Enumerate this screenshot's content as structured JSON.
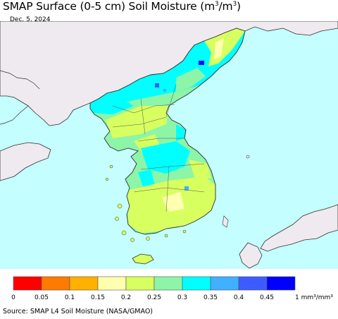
{
  "title": {
    "prefix": "SMAP Surface (0-5 cm) Soil Moisture (m",
    "sup1": "3",
    "mid": "/m",
    "sup2": "3",
    "suffix": ")"
  },
  "date": "Dec. 5, 2024",
  "colors": {
    "sea": "#c4fefe",
    "land_outside": "#efeaef",
    "coast": "#2f2f2f"
  },
  "legend": {
    "bins": [
      {
        "color": "#ff0000"
      },
      {
        "color": "#ff7a00"
      },
      {
        "color": "#ffb000"
      },
      {
        "color": "#ffffb0"
      },
      {
        "color": "#d8ff60"
      },
      {
        "color": "#8cf5a8"
      },
      {
        "color": "#00ffff"
      },
      {
        "color": "#40b0ff"
      },
      {
        "color": "#3c5cff"
      },
      {
        "color": "#0000ff"
      }
    ],
    "tick_labels": [
      "0",
      "0.05",
      "0.1",
      "0.15",
      "0.2",
      "0.25",
      "0.3",
      "0.35",
      "0.4",
      "0.45",
      "1"
    ],
    "unit": "mm³/mm³"
  },
  "source": "Source: SMAP L4 Soil Moisture (NASA/GMAO)"
}
